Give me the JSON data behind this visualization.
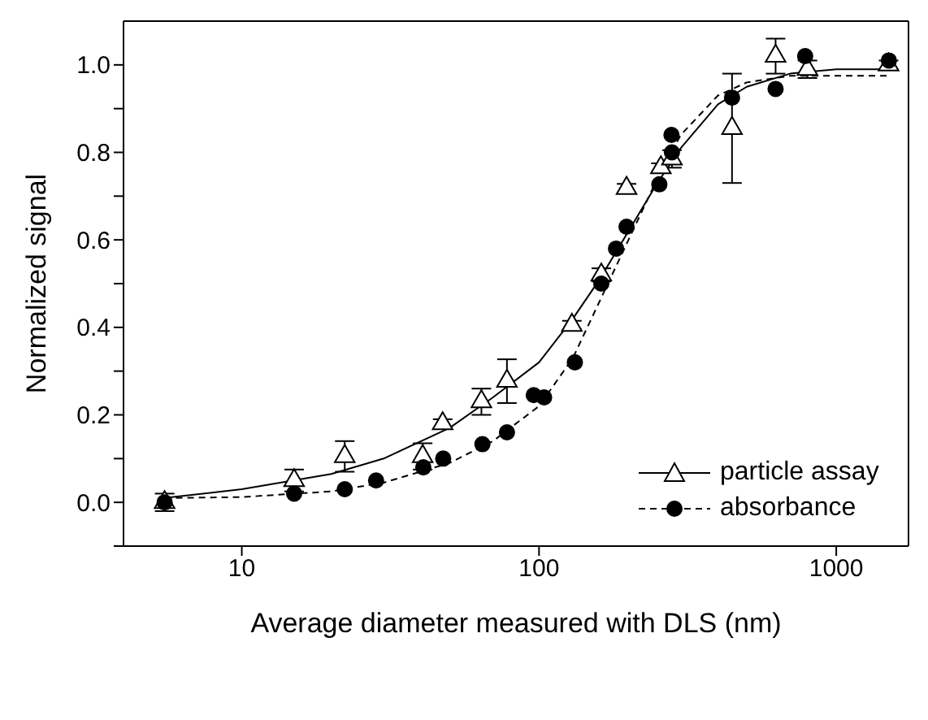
{
  "chart_data": {
    "type": "scatter",
    "xlabel": "Average diameter measured with DLS (nm)",
    "ylabel": "Normalized signal",
    "log": "x",
    "xlim": [
      4,
      1750
    ],
    "xticks": [
      10,
      100,
      1000
    ],
    "ylim": [
      -0.1,
      1.1
    ],
    "yticks": [
      {
        "value": -0.1,
        "label": null
      },
      {
        "value": 0,
        "label": "0.0"
      },
      {
        "value": 0.1,
        "label": null
      },
      0.2,
      {
        "value": 0.3,
        "label": null
      },
      0.4,
      {
        "value": 0.5,
        "label": null
      },
      0.6,
      {
        "value": 0.7,
        "label": null
      },
      0.8,
      {
        "value": 0.9,
        "label": null
      },
      {
        "value": 1,
        "label": "1.0"
      }
    ],
    "grid": false,
    "legend": "bottom right",
    "series": [
      {
        "type": "line",
        "color": "#000000",
        "line_style": "solid",
        "marker": "none",
        "x": [
          5.5,
          10,
          20,
          30,
          50,
          70,
          100,
          130,
          160,
          200,
          250,
          300,
          400,
          500,
          700,
          1000,
          1500
        ],
        "values": [
          0.01,
          0.03,
          0.065,
          0.1,
          0.17,
          0.24,
          0.32,
          0.42,
          0.51,
          0.62,
          0.73,
          0.81,
          0.91,
          0.95,
          0.98,
          0.99,
          0.99
        ]
      },
      {
        "type": "scatter",
        "name": "particle assay",
        "color": "#000000",
        "marker": "triangle",
        "x": [
          5.5,
          15,
          22.2,
          40.6,
          47.4,
          64,
          78,
          129,
          162,
          197,
          257,
          280,
          446,
          625,
          800,
          1500
        ],
        "values": [
          0.0,
          0.05,
          0.105,
          0.105,
          0.18,
          0.23,
          0.277,
          0.405,
          0.52,
          0.718,
          0.765,
          0.785,
          0.855,
          1.02,
          0.99,
          1.0
        ],
        "errors": [
          0.02,
          0.025,
          0.035,
          0.03,
          0.01,
          0.03,
          0.05,
          0.01,
          0.015,
          0.01,
          0.01,
          0.02,
          0.125,
          0.04,
          0.02,
          0.01
        ]
      },
      {
        "type": "line",
        "color": "#000000",
        "line_style": "dashed",
        "marker": "none",
        "x": [
          5.5,
          10,
          20,
          30,
          50,
          70,
          100,
          130,
          160,
          200,
          250,
          300,
          400,
          500,
          700,
          1000,
          1500
        ],
        "values": [
          0.01,
          0.012,
          0.025,
          0.045,
          0.09,
          0.14,
          0.22,
          0.33,
          0.46,
          0.6,
          0.74,
          0.84,
          0.93,
          0.96,
          0.975,
          0.975,
          0.975
        ]
      },
      {
        "type": "scatter",
        "name": "absorbance",
        "color": "#000000",
        "marker": "circle",
        "x": [
          5.5,
          15,
          22.2,
          28.3,
          40.8,
          47.6,
          64.5,
          78,
          96,
          104,
          132,
          162,
          181.6,
          197,
          254,
          279,
          280,
          446,
          625,
          786,
          1503
        ],
        "values": [
          0.0,
          0.02,
          0.03,
          0.05,
          0.08,
          0.1,
          0.133,
          0.16,
          0.245,
          0.24,
          0.32,
          0.5,
          0.58,
          0.63,
          0.727,
          0.84,
          0.8,
          0.925,
          0.945,
          1.02,
          1.01
        ]
      }
    ]
  }
}
